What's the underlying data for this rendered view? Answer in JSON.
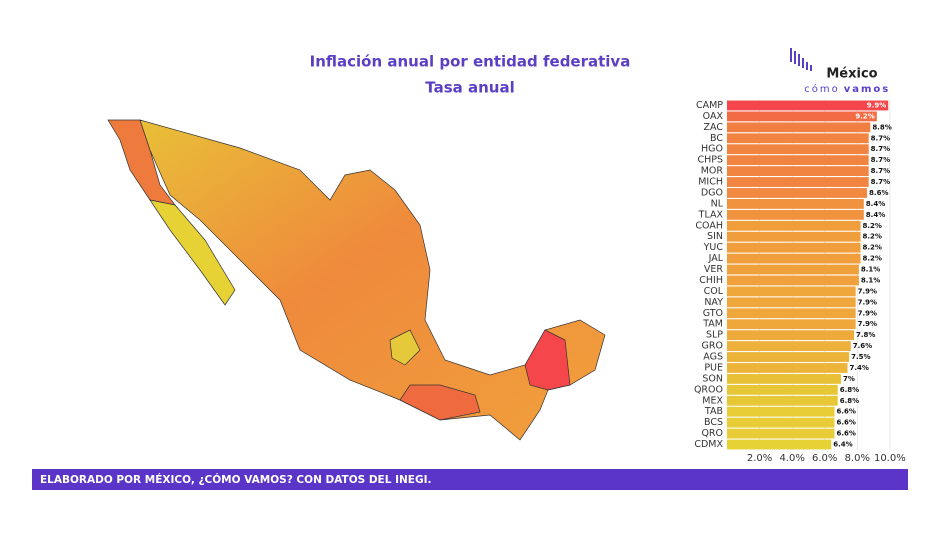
{
  "chart_data": {
    "type": "bar",
    "orientation": "horizontal",
    "title": "Inflación anual por entidad federativa",
    "subtitle": "Tasa anual",
    "categories": [
      "CAMP",
      "OAX",
      "ZAC",
      "BC",
      "HGO",
      "CHPS",
      "MOR",
      "MICH",
      "DGO",
      "NL",
      "TLAX",
      "COAH",
      "SIN",
      "YUC",
      "JAL",
      "VER",
      "CHIH",
      "COL",
      "NAY",
      "GTO",
      "TAM",
      "SLP",
      "GRO",
      "AGS",
      "PUE",
      "SON",
      "QROO",
      "MEX",
      "TAB",
      "BCS",
      "QRO",
      "CDMX"
    ],
    "values": [
      9.9,
      9.2,
      8.8,
      8.7,
      8.7,
      8.7,
      8.7,
      8.7,
      8.6,
      8.4,
      8.4,
      8.2,
      8.2,
      8.2,
      8.2,
      8.1,
      8.1,
      7.9,
      7.9,
      7.9,
      7.9,
      7.8,
      7.6,
      7.5,
      7.4,
      7,
      6.8,
      6.8,
      6.6,
      6.6,
      6.6,
      6.4
    ],
    "value_labels": [
      "9.9%",
      "9.2%",
      "8.8%",
      "8.7%",
      "8.7%",
      "8.7%",
      "8.7%",
      "8.7%",
      "8.6%",
      "8.4%",
      "8.4%",
      "8.2%",
      "8.2%",
      "8.2%",
      "8.2%",
      "8.1%",
      "8.1%",
      "7.9%",
      "7.9%",
      "7.9%",
      "7.9%",
      "7.8%",
      "7.6%",
      "7.5%",
      "7.4%",
      "7%",
      "6.8%",
      "6.8%",
      "6.6%",
      "6.6%",
      "6.6%",
      "6.4%"
    ],
    "color_scale": [
      "#e6d235",
      "#f0a03c",
      "#f5474b"
    ],
    "xlim": [
      0,
      10.5
    ],
    "xticks": [
      {
        "value": 2,
        "label": "2.0%"
      },
      {
        "value": 4,
        "label": "4.0%"
      },
      {
        "value": 6,
        "label": "6.0%"
      },
      {
        "value": 8,
        "label": "8.0%"
      },
      {
        "value": 10,
        "label": "10.0%"
      }
    ],
    "grid": true
  },
  "logo": {
    "name": "México",
    "tag1": "cómo",
    "tag2": "vamos"
  },
  "footer": "ELABORADO POR MÉXICO, ¿CÓMO VAMOS? CON DATOS DEL INEGI."
}
